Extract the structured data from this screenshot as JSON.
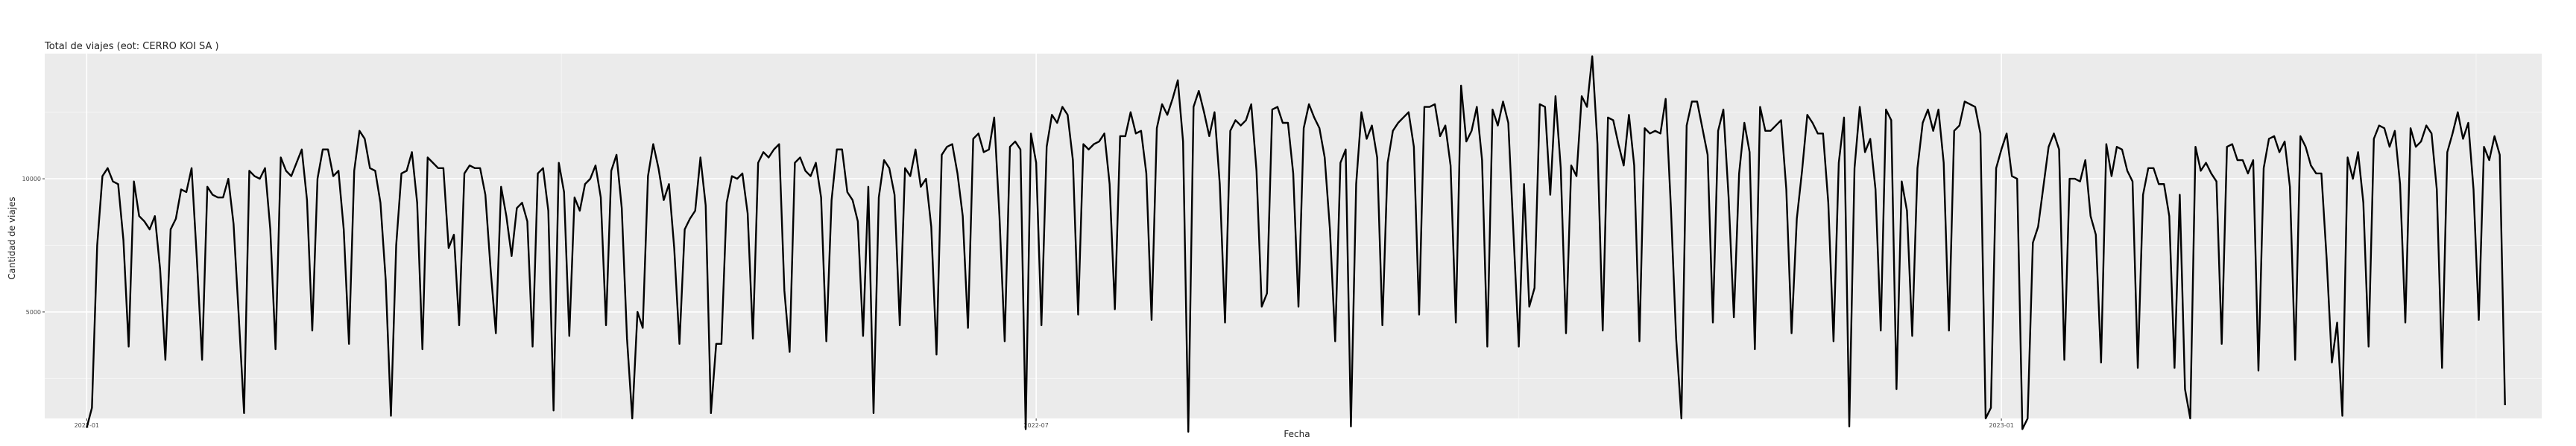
{
  "chart_data": {
    "type": "line",
    "title": "Total de viajes (eot: CERRO KOI SA )",
    "xlabel": "Fecha",
    "ylabel": "Cantidad de viajes",
    "x_ticks": [
      "2022-01",
      "2022-07",
      "2023-01"
    ],
    "y_ticks": [
      5000,
      10000
    ],
    "x_range": [
      "2021-12-24",
      "2023-04-14"
    ],
    "ylim": [
      1000,
      14700
    ],
    "grid": true,
    "background": "#ebebeb",
    "line_color": "#000000",
    "start_date": "2022-01-01",
    "series": [
      {
        "values": [
          650,
          1400,
          7500,
          10100,
          10400,
          9900,
          9800,
          7700,
          3700,
          9900,
          8600,
          8400,
          8100,
          8600,
          6600,
          3200,
          8100,
          8500,
          9600,
          9500,
          10400,
          7000,
          3200,
          9700,
          9400,
          9300,
          9300,
          10000,
          8300,
          4800,
          1200,
          10300,
          10100,
          10000,
          10400,
          8100,
          3600,
          10800,
          10300,
          10100,
          10600,
          11100,
          9200,
          4300,
          10000,
          11100,
          11100,
          10100,
          10300,
          8100,
          3800,
          10300,
          11800,
          11500,
          10400,
          10300,
          9100,
          6200,
          1100,
          7500,
          10200,
          10300,
          11000,
          9100,
          3600,
          10800,
          10600,
          10400,
          10400,
          7400,
          7900,
          4500,
          10200,
          10500,
          10400,
          10400,
          9400,
          6600,
          4200,
          9700,
          8600,
          7100,
          8900,
          9100,
          8400,
          3700,
          10200,
          10400,
          8800,
          1300,
          10600,
          9500,
          4100,
          9300,
          8800,
          9800,
          10000,
          10500,
          9300,
          4500,
          10300,
          10900,
          8900,
          4000,
          1000,
          5000,
          4400,
          10100,
          11300,
          10400,
          9200,
          9800,
          7400,
          3800,
          8100,
          8500,
          8800,
          10800,
          9000,
          1200,
          3800,
          3800,
          9100,
          10100,
          10000,
          10200,
          8700,
          4000,
          10600,
          11000,
          10800,
          11100,
          11300,
          5800,
          3500,
          10600,
          10800,
          10300,
          10100,
          10600,
          9300,
          3900,
          9200,
          11100,
          11100,
          9500,
          9200,
          8400,
          4100,
          9700,
          1200,
          9300,
          10700,
          10400,
          9400,
          4500,
          10400,
          10100,
          11100,
          9700,
          10000,
          8200,
          3400,
          10900,
          11200,
          11300,
          10200,
          8600,
          4400,
          11500,
          11700,
          11000,
          11100,
          12300,
          8600,
          3900,
          11200,
          11400,
          11100,
          600,
          11700,
          10600,
          4500,
          11200,
          12400,
          12100,
          12700,
          12400,
          10700,
          4900,
          11300,
          11100,
          11300,
          11400,
          11700,
          9800,
          5100,
          11600,
          11600,
          12500,
          11700,
          11800,
          10200,
          4700,
          11900,
          12800,
          12400,
          13000,
          13700,
          11400,
          500,
          12700,
          13300,
          12500,
          11600,
          12500,
          9800,
          4600,
          11800,
          12200,
          12000,
          12200,
          12800,
          10300,
          5200,
          5700,
          12600,
          12700,
          12100,
          12100,
          10200,
          5200,
          11900,
          12800,
          12300,
          11900,
          10800,
          8100,
          3900,
          10600,
          11100,
          700,
          9800,
          12500,
          11500,
          12000,
          10800,
          4500,
          10600,
          11800,
          12100,
          12300,
          12500,
          11200,
          4900,
          12700,
          12700,
          12800,
          11600,
          12000,
          10500,
          4600,
          13500,
          11400,
          11800,
          12700,
          10700,
          3700,
          12600,
          12000,
          12900,
          12100,
          7900,
          3700,
          9800,
          5200,
          5900,
          12800,
          12700,
          9400,
          13100,
          10400,
          4200,
          10500,
          10100,
          13100,
          12700,
          14600,
          11300,
          4300,
          12300,
          12200,
          11300,
          10500,
          12400,
          10500,
          3900,
          11900,
          11700,
          11800,
          11700,
          13000,
          8900,
          4000,
          1000,
          12000,
          12900,
          12900,
          11900,
          10900,
          4600,
          11800,
          12600,
          9300,
          4800,
          10200,
          12100,
          11000,
          3600,
          12700,
          11800,
          11800,
          12000,
          12200,
          9600,
          4200,
          8500,
          10300,
          12400,
          12100,
          11700,
          11700,
          9100,
          3900,
          10600,
          12300,
          700,
          10400,
          12700,
          11000,
          11500,
          9600,
          4300,
          12600,
          12200,
          2100,
          9900,
          8800,
          4100,
          10400,
          12100,
          12600,
          11800,
          12600,
          10600,
          4300,
          11800,
          12000,
          12900,
          12800,
          12700,
          11700,
          1000,
          1400,
          10400,
          11100,
          11700,
          10100,
          10000,
          600,
          1000,
          7600,
          8200,
          9700,
          11200,
          11700,
          11100,
          3200,
          10000,
          10000,
          9900,
          10700,
          8600,
          7900,
          3100,
          11300,
          10100,
          11200,
          11100,
          10300,
          9900,
          2900,
          9400,
          10400,
          10400,
          9800,
          9800,
          8600,
          2900,
          9400,
          2100,
          1000,
          11200,
          10300,
          10600,
          10200,
          9900,
          3800,
          11200,
          11300,
          10700,
          10700,
          10200,
          10700,
          2800,
          10400,
          11500,
          11600,
          11000,
          11400,
          9700,
          3200,
          11600,
          11200,
          10500,
          10200,
          10200,
          7000,
          3100,
          4600,
          1100,
          10800,
          10000,
          11000,
          9100,
          3700,
          11500,
          12000,
          11900,
          11200,
          11800,
          9800,
          4600,
          11900,
          11200,
          11400,
          12000,
          11700,
          9600,
          2900,
          11000,
          11700,
          12500,
          11500,
          12100,
          9600,
          4700,
          11200,
          10700,
          11600,
          10900,
          1500
        ]
      }
    ]
  }
}
